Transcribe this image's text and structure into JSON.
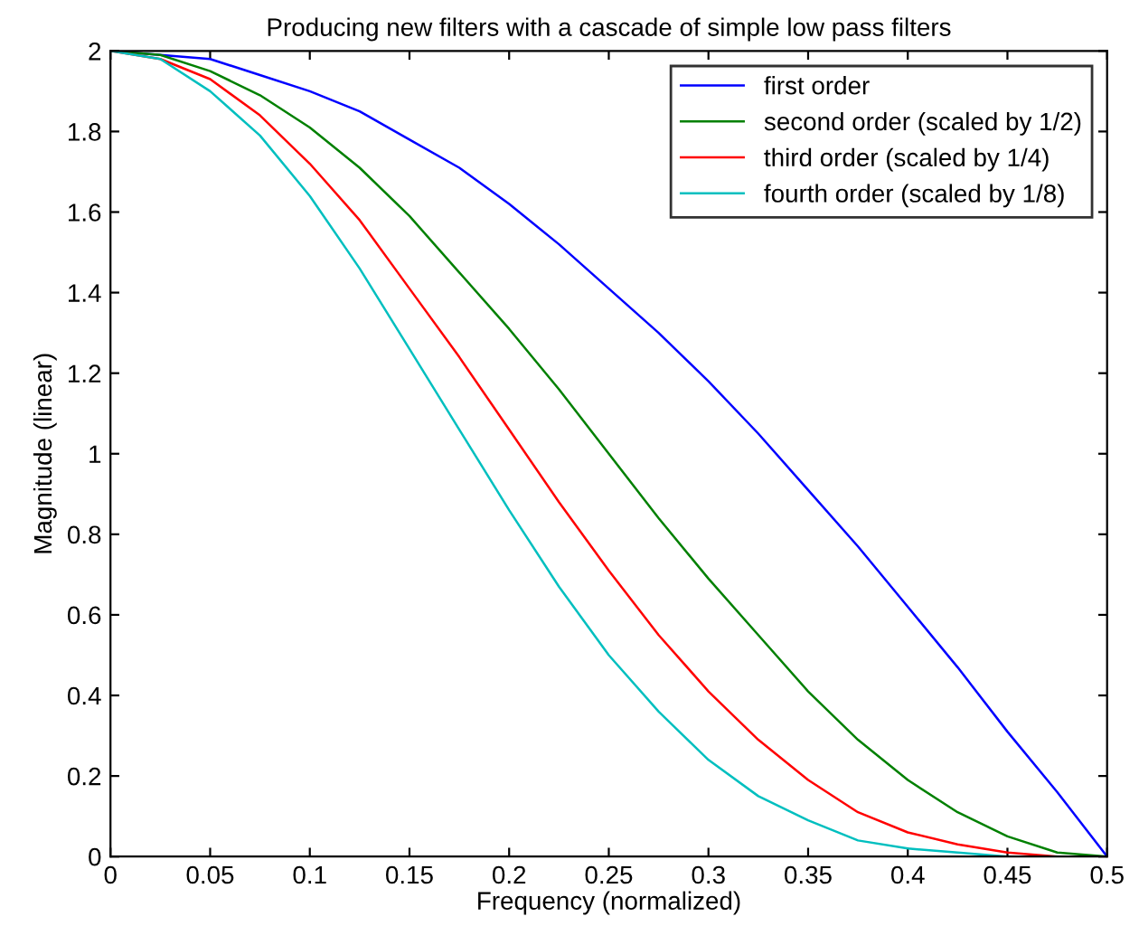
{
  "chart_data": {
    "type": "line",
    "title": "Producing new filters with a cascade of simple low pass filters",
    "xlabel": "Frequency (normalized)",
    "ylabel": "Magnitude (linear)",
    "x": [
      0,
      0.025,
      0.05,
      0.075,
      0.1,
      0.125,
      0.15,
      0.175,
      0.2,
      0.225,
      0.25,
      0.275,
      0.3,
      0.325,
      0.35,
      0.375,
      0.4,
      0.425,
      0.45,
      0.475,
      0.5
    ],
    "series": [
      {
        "name": "first order",
        "color": "#0000ff",
        "values": [
          2,
          1.99,
          1.98,
          1.94,
          1.9,
          1.85,
          1.78,
          1.71,
          1.62,
          1.52,
          1.41,
          1.3,
          1.18,
          1.05,
          0.91,
          0.77,
          0.62,
          0.47,
          0.31,
          0.16,
          0
        ]
      },
      {
        "name": "second order (scaled by 1/2)",
        "color": "#008000",
        "values": [
          2,
          1.99,
          1.95,
          1.89,
          1.81,
          1.71,
          1.59,
          1.45,
          1.31,
          1.16,
          1,
          0.84,
          0.69,
          0.55,
          0.41,
          0.29,
          0.19,
          0.11,
          0.05,
          0.01,
          0
        ]
      },
      {
        "name": "third order (scaled by 1/4)",
        "color": "#ff0000",
        "values": [
          2,
          1.98,
          1.93,
          1.84,
          1.72,
          1.58,
          1.41,
          1.24,
          1.06,
          0.88,
          0.71,
          0.55,
          0.41,
          0.29,
          0.19,
          0.11,
          0.06,
          0.03,
          0.01,
          0,
          0
        ]
      },
      {
        "name": "fourth order (scaled by 1/8)",
        "color": "#00bfbf",
        "x": [
          0,
          0.025,
          0.05,
          0.075,
          0.1,
          0.125,
          0.15,
          0.175,
          0.2,
          0.225,
          0.25,
          0.275,
          0.3,
          0.325,
          0.35,
          0.375,
          0.4,
          0.425,
          0.45,
          0.5
        ],
        "values": [
          2,
          1.98,
          1.9,
          1.79,
          1.64,
          1.46,
          1.26,
          1.06,
          0.86,
          0.67,
          0.5,
          0.36,
          0.24,
          0.15,
          0.09,
          0.04,
          0.02,
          0.01,
          0,
          0
        ]
      }
    ],
    "xlim": [
      0,
      0.5
    ],
    "ylim": [
      0,
      2
    ],
    "xticks": [
      0,
      0.05,
      0.1,
      0.15,
      0.2,
      0.25,
      0.3,
      0.35,
      0.4,
      0.45,
      0.5
    ],
    "yticks": [
      0,
      0.2,
      0.4,
      0.6,
      0.8,
      1,
      1.2,
      1.4,
      1.6,
      1.8,
      2
    ],
    "grid": false,
    "legend": "top right",
    "marker": "none",
    "line_style": "solid"
  }
}
